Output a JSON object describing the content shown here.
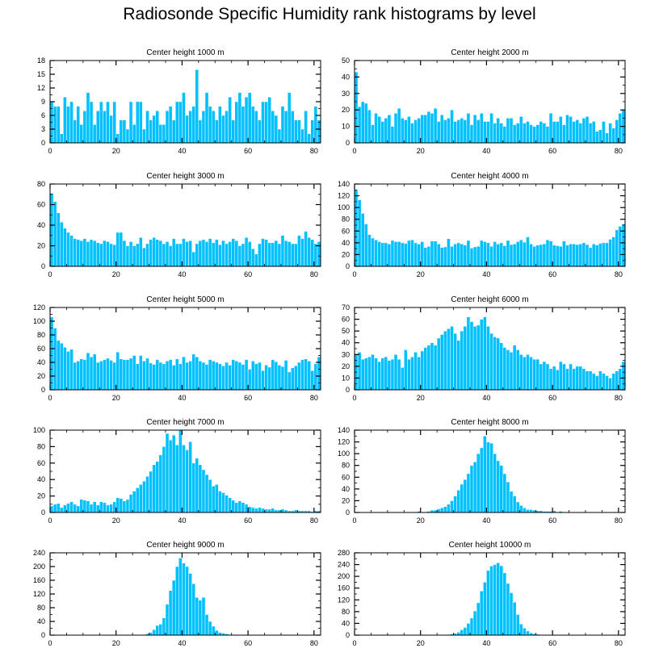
{
  "title": "Radiosonde Specific Humidity rank histograms by level",
  "colors": {
    "bar": "#00c0ff",
    "bar_edge": "#ffffff",
    "axis": "#000000"
  },
  "chart_data": [
    {
      "type": "bar",
      "title": "Center height 1000 m",
      "xlim": [
        0,
        82
      ],
      "ylim": [
        0,
        18
      ],
      "xticks": [
        0,
        20,
        40,
        60,
        80
      ],
      "yticks": [
        0,
        3,
        6,
        9,
        12,
        15,
        18
      ],
      "values": [
        9,
        8,
        8,
        2,
        10,
        8,
        9,
        5,
        8,
        4,
        7,
        11,
        9,
        4,
        7,
        9,
        7,
        9,
        6,
        9,
        2,
        5,
        5,
        3,
        9,
        4,
        9,
        9,
        3,
        7,
        5,
        6,
        7,
        4,
        4,
        7,
        8,
        5,
        9,
        9,
        11,
        6,
        7,
        8,
        16,
        5,
        7,
        11,
        8,
        7,
        5,
        8,
        6,
        7,
        10,
        5,
        9,
        11,
        8,
        10,
        11,
        8,
        7,
        5,
        9,
        9,
        10,
        7,
        6,
        3,
        8,
        7,
        11,
        7,
        5,
        5,
        3,
        7,
        2,
        5,
        8,
        5
      ]
    },
    {
      "type": "bar",
      "title": "Center height 2000 m",
      "xlim": [
        0,
        82
      ],
      "ylim": [
        0,
        50
      ],
      "xticks": [
        0,
        20,
        40,
        60,
        80
      ],
      "yticks": [
        0,
        10,
        20,
        30,
        40,
        50
      ],
      "values": [
        43,
        22,
        25,
        24,
        20,
        11,
        18,
        16,
        13,
        15,
        17,
        10,
        18,
        21,
        15,
        14,
        16,
        12,
        14,
        15,
        17,
        17,
        19,
        18,
        21,
        13,
        17,
        14,
        15,
        20,
        13,
        14,
        15,
        14,
        18,
        11,
        17,
        14,
        18,
        13,
        13,
        18,
        12,
        15,
        12,
        10,
        15,
        15,
        11,
        12,
        16,
        12,
        13,
        11,
        10,
        11,
        13,
        12,
        10,
        18,
        13,
        13,
        16,
        11,
        17,
        16,
        13,
        14,
        12,
        15,
        16,
        12,
        13,
        7,
        8,
        13,
        6,
        12,
        9,
        14,
        18,
        20
      ]
    },
    {
      "type": "bar",
      "title": "Center height 3000 m",
      "xlim": [
        0,
        82
      ],
      "ylim": [
        0,
        80
      ],
      "xticks": [
        0,
        20,
        40,
        60,
        80
      ],
      "yticks": [
        0,
        20,
        40,
        60,
        80
      ],
      "values": [
        71,
        63,
        52,
        43,
        37,
        33,
        30,
        27,
        26,
        25,
        27,
        24,
        26,
        25,
        23,
        22,
        25,
        24,
        22,
        21,
        33,
        33,
        25,
        20,
        24,
        20,
        22,
        28,
        18,
        22,
        26,
        28,
        26,
        25,
        22,
        24,
        20,
        27,
        22,
        22,
        27,
        24,
        25,
        14,
        22,
        25,
        26,
        24,
        27,
        23,
        26,
        21,
        25,
        22,
        24,
        27,
        25,
        20,
        22,
        28,
        24,
        17,
        12,
        22,
        27,
        26,
        23,
        23,
        25,
        22,
        30,
        25,
        24,
        22,
        22,
        30,
        27,
        34,
        28,
        26,
        22,
        24
      ]
    },
    {
      "type": "bar",
      "title": "Center height 4000 m",
      "xlim": [
        0,
        82
      ],
      "ylim": [
        0,
        140
      ],
      "xticks": [
        0,
        20,
        40,
        60,
        80
      ],
      "yticks": [
        0,
        20,
        40,
        60,
        80,
        100,
        120,
        140
      ],
      "values": [
        130,
        113,
        90,
        72,
        54,
        48,
        45,
        42,
        40,
        40,
        38,
        44,
        42,
        42,
        40,
        39,
        44,
        45,
        40,
        38,
        42,
        32,
        34,
        43,
        43,
        38,
        32,
        33,
        47,
        34,
        38,
        40,
        38,
        36,
        44,
        31,
        33,
        34,
        44,
        42,
        40,
        34,
        42,
        38,
        40,
        35,
        44,
        37,
        38,
        42,
        45,
        41,
        50,
        38,
        34,
        36,
        37,
        38,
        45,
        43,
        36,
        35,
        34,
        43,
        36,
        38,
        38,
        37,
        38,
        40,
        37,
        32,
        38,
        36,
        39,
        40,
        40,
        46,
        50,
        62,
        68,
        72
      ]
    },
    {
      "type": "bar",
      "title": "Center height 5000 m",
      "xlim": [
        0,
        82
      ],
      "ylim": [
        0,
        120
      ],
      "xticks": [
        0,
        20,
        40,
        60,
        80
      ],
      "yticks": [
        0,
        20,
        40,
        60,
        80,
        100,
        120
      ],
      "values": [
        106,
        90,
        72,
        68,
        62,
        56,
        59,
        40,
        42,
        45,
        44,
        54,
        48,
        52,
        40,
        42,
        44,
        46,
        43,
        40,
        55,
        45,
        44,
        44,
        46,
        50,
        38,
        50,
        42,
        46,
        39,
        37,
        44,
        40,
        38,
        42,
        44,
        36,
        45,
        38,
        48,
        40,
        42,
        52,
        48,
        42,
        40,
        37,
        44,
        42,
        40,
        38,
        35,
        40,
        36,
        44,
        42,
        40,
        37,
        44,
        30,
        42,
        38,
        40,
        28,
        36,
        33,
        44,
        41,
        36,
        34,
        43,
        26,
        32,
        35,
        40,
        44,
        45,
        42,
        28,
        38,
        48
      ]
    },
    {
      "type": "bar",
      "title": "Center height 6000 m",
      "xlim": [
        0,
        82
      ],
      "ylim": [
        0,
        70
      ],
      "xticks": [
        0,
        20,
        40,
        60,
        80
      ],
      "yticks": [
        0,
        10,
        20,
        30,
        40,
        50,
        60,
        70
      ],
      "values": [
        30,
        32,
        26,
        27,
        28,
        30,
        27,
        24,
        27,
        28,
        25,
        26,
        30,
        26,
        19,
        34,
        26,
        28,
        32,
        28,
        33,
        36,
        38,
        40,
        38,
        44,
        47,
        50,
        52,
        54,
        48,
        42,
        50,
        54,
        62,
        58,
        54,
        55,
        60,
        62,
        54,
        48,
        45,
        44,
        40,
        36,
        34,
        32,
        38,
        34,
        30,
        28,
        30,
        28,
        26,
        26,
        22,
        24,
        22,
        18,
        20,
        17,
        24,
        22,
        18,
        22,
        18,
        20,
        20,
        18,
        16,
        16,
        14,
        12,
        16,
        14,
        12,
        10,
        14,
        16,
        18,
        24
      ]
    },
    {
      "type": "bar",
      "title": "Center height 7000 m",
      "xlim": [
        0,
        82
      ],
      "ylim": [
        0,
        100
      ],
      "xticks": [
        0,
        20,
        40,
        60,
        80
      ],
      "yticks": [
        0,
        20,
        40,
        60,
        80,
        100
      ],
      "values": [
        8,
        10,
        11,
        6,
        9,
        11,
        13,
        10,
        8,
        16,
        15,
        14,
        10,
        13,
        9,
        13,
        12,
        9,
        10,
        13,
        18,
        17,
        14,
        16,
        22,
        26,
        30,
        34,
        38,
        44,
        50,
        58,
        62,
        70,
        80,
        96,
        88,
        94,
        82,
        100,
        82,
        76,
        86,
        60,
        66,
        58,
        52,
        46,
        40,
        32,
        34,
        26,
        24,
        21,
        18,
        15,
        12,
        14,
        12,
        10,
        7,
        6,
        5,
        6,
        5,
        4,
        4,
        5,
        3,
        3,
        4,
        3,
        2,
        2,
        3,
        2,
        2,
        2,
        2,
        1,
        2,
        2
      ]
    },
    {
      "type": "bar",
      "title": "Center height 8000 m",
      "xlim": [
        0,
        82
      ],
      "ylim": [
        0,
        140
      ],
      "xticks": [
        0,
        20,
        40,
        60,
        80
      ],
      "yticks": [
        0,
        20,
        40,
        60,
        80,
        100,
        120,
        140
      ],
      "values": [
        0,
        0,
        0,
        0,
        0,
        0,
        0,
        0,
        0,
        0,
        0,
        0,
        0,
        0,
        0,
        0,
        1,
        1,
        0,
        2,
        1,
        1,
        2,
        4,
        4,
        6,
        8,
        10,
        14,
        20,
        28,
        38,
        48,
        56,
        66,
        80,
        86,
        100,
        110,
        130,
        120,
        118,
        100,
        88,
        80,
        66,
        52,
        36,
        28,
        18,
        12,
        8,
        5,
        5,
        4,
        3,
        3,
        2,
        2,
        2,
        3,
        1,
        2,
        1,
        0,
        1,
        1,
        0,
        0,
        0,
        0,
        0,
        0,
        0,
        0,
        0,
        0,
        0,
        0,
        0,
        0,
        0
      ]
    },
    {
      "type": "bar",
      "title": "Center height 9000 m",
      "xlim": [
        0,
        82
      ],
      "ylim": [
        0,
        240
      ],
      "xticks": [
        0,
        20,
        40,
        60,
        80
      ],
      "yticks": [
        0,
        40,
        80,
        120,
        160,
        200,
        240
      ],
      "values": [
        0,
        0,
        0,
        0,
        0,
        0,
        0,
        0,
        0,
        0,
        0,
        0,
        0,
        0,
        0,
        0,
        0,
        0,
        0,
        0,
        0,
        0,
        0,
        0,
        0,
        0,
        0,
        0,
        2,
        4,
        8,
        16,
        28,
        32,
        50,
        90,
        130,
        160,
        200,
        225,
        210,
        200,
        180,
        150,
        110,
        102,
        110,
        60,
        40,
        26,
        14,
        8,
        6,
        4,
        2,
        2,
        0,
        0,
        0,
        0,
        0,
        0,
        0,
        0,
        0,
        0,
        0,
        0,
        0,
        0,
        0,
        0,
        0,
        0,
        0,
        0,
        0,
        0,
        0,
        0,
        0,
        0
      ]
    },
    {
      "type": "bar",
      "title": "Center height 10000 m",
      "xlim": [
        0,
        82
      ],
      "ylim": [
        0,
        280
      ],
      "xticks": [
        0,
        20,
        40,
        60,
        80
      ],
      "yticks": [
        0,
        40,
        80,
        120,
        160,
        200,
        240,
        280
      ],
      "values": [
        0,
        0,
        0,
        0,
        0,
        0,
        0,
        0,
        0,
        0,
        0,
        0,
        0,
        0,
        0,
        0,
        0,
        0,
        0,
        0,
        0,
        0,
        0,
        0,
        0,
        0,
        0,
        0,
        2,
        4,
        6,
        10,
        18,
        26,
        40,
        58,
        82,
        110,
        150,
        180,
        220,
        235,
        240,
        246,
        236,
        212,
        176,
        144,
        112,
        70,
        38,
        24,
        14,
        8,
        5,
        3,
        2,
        2,
        1,
        0,
        0,
        0,
        0,
        0,
        0,
        0,
        0,
        0,
        0,
        0,
        0,
        0,
        0,
        0,
        0,
        0,
        0,
        0,
        0,
        0,
        0,
        0
      ]
    }
  ]
}
